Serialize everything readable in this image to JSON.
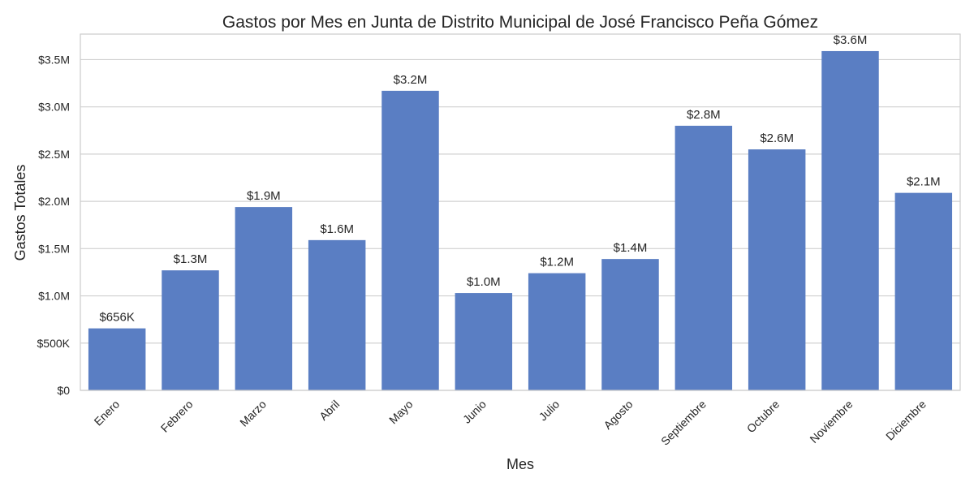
{
  "chart_data": {
    "type": "bar",
    "title": "Gastos por Mes en Junta de Distrito Municipal de José Francisco Peña Gómez",
    "xlabel": "Mes",
    "ylabel": "Gastos Totales",
    "categories": [
      "Enero",
      "Febrero",
      "Marzo",
      "Abril",
      "Mayo",
      "Junio",
      "Julio",
      "Agosto",
      "Septiembre",
      "Octubre",
      "Noviembre",
      "Diciembre"
    ],
    "values": [
      656000,
      1270000,
      1940000,
      1590000,
      3170000,
      1030000,
      1240000,
      1390000,
      2800000,
      2550000,
      3590000,
      2090000
    ],
    "value_labels": [
      "$656K",
      "$1.3M",
      "$1.9M",
      "$1.6M",
      "$3.2M",
      "$1.0M",
      "$1.2M",
      "$1.4M",
      "$2.8M",
      "$2.6M",
      "$3.6M",
      "$2.1M"
    ],
    "yticks": [
      0,
      500000,
      1000000,
      1500000,
      2000000,
      2500000,
      3000000,
      3500000
    ],
    "ytick_labels": [
      "$0",
      "$500K",
      "$1.0M",
      "$1.5M",
      "$2.0M",
      "$2.5M",
      "$3.0M",
      "$3.5M"
    ],
    "ylim": [
      0,
      3770000
    ],
    "grid": true,
    "bar_color": "#5a7ec3",
    "grid_color": "#d0d0d0"
  }
}
